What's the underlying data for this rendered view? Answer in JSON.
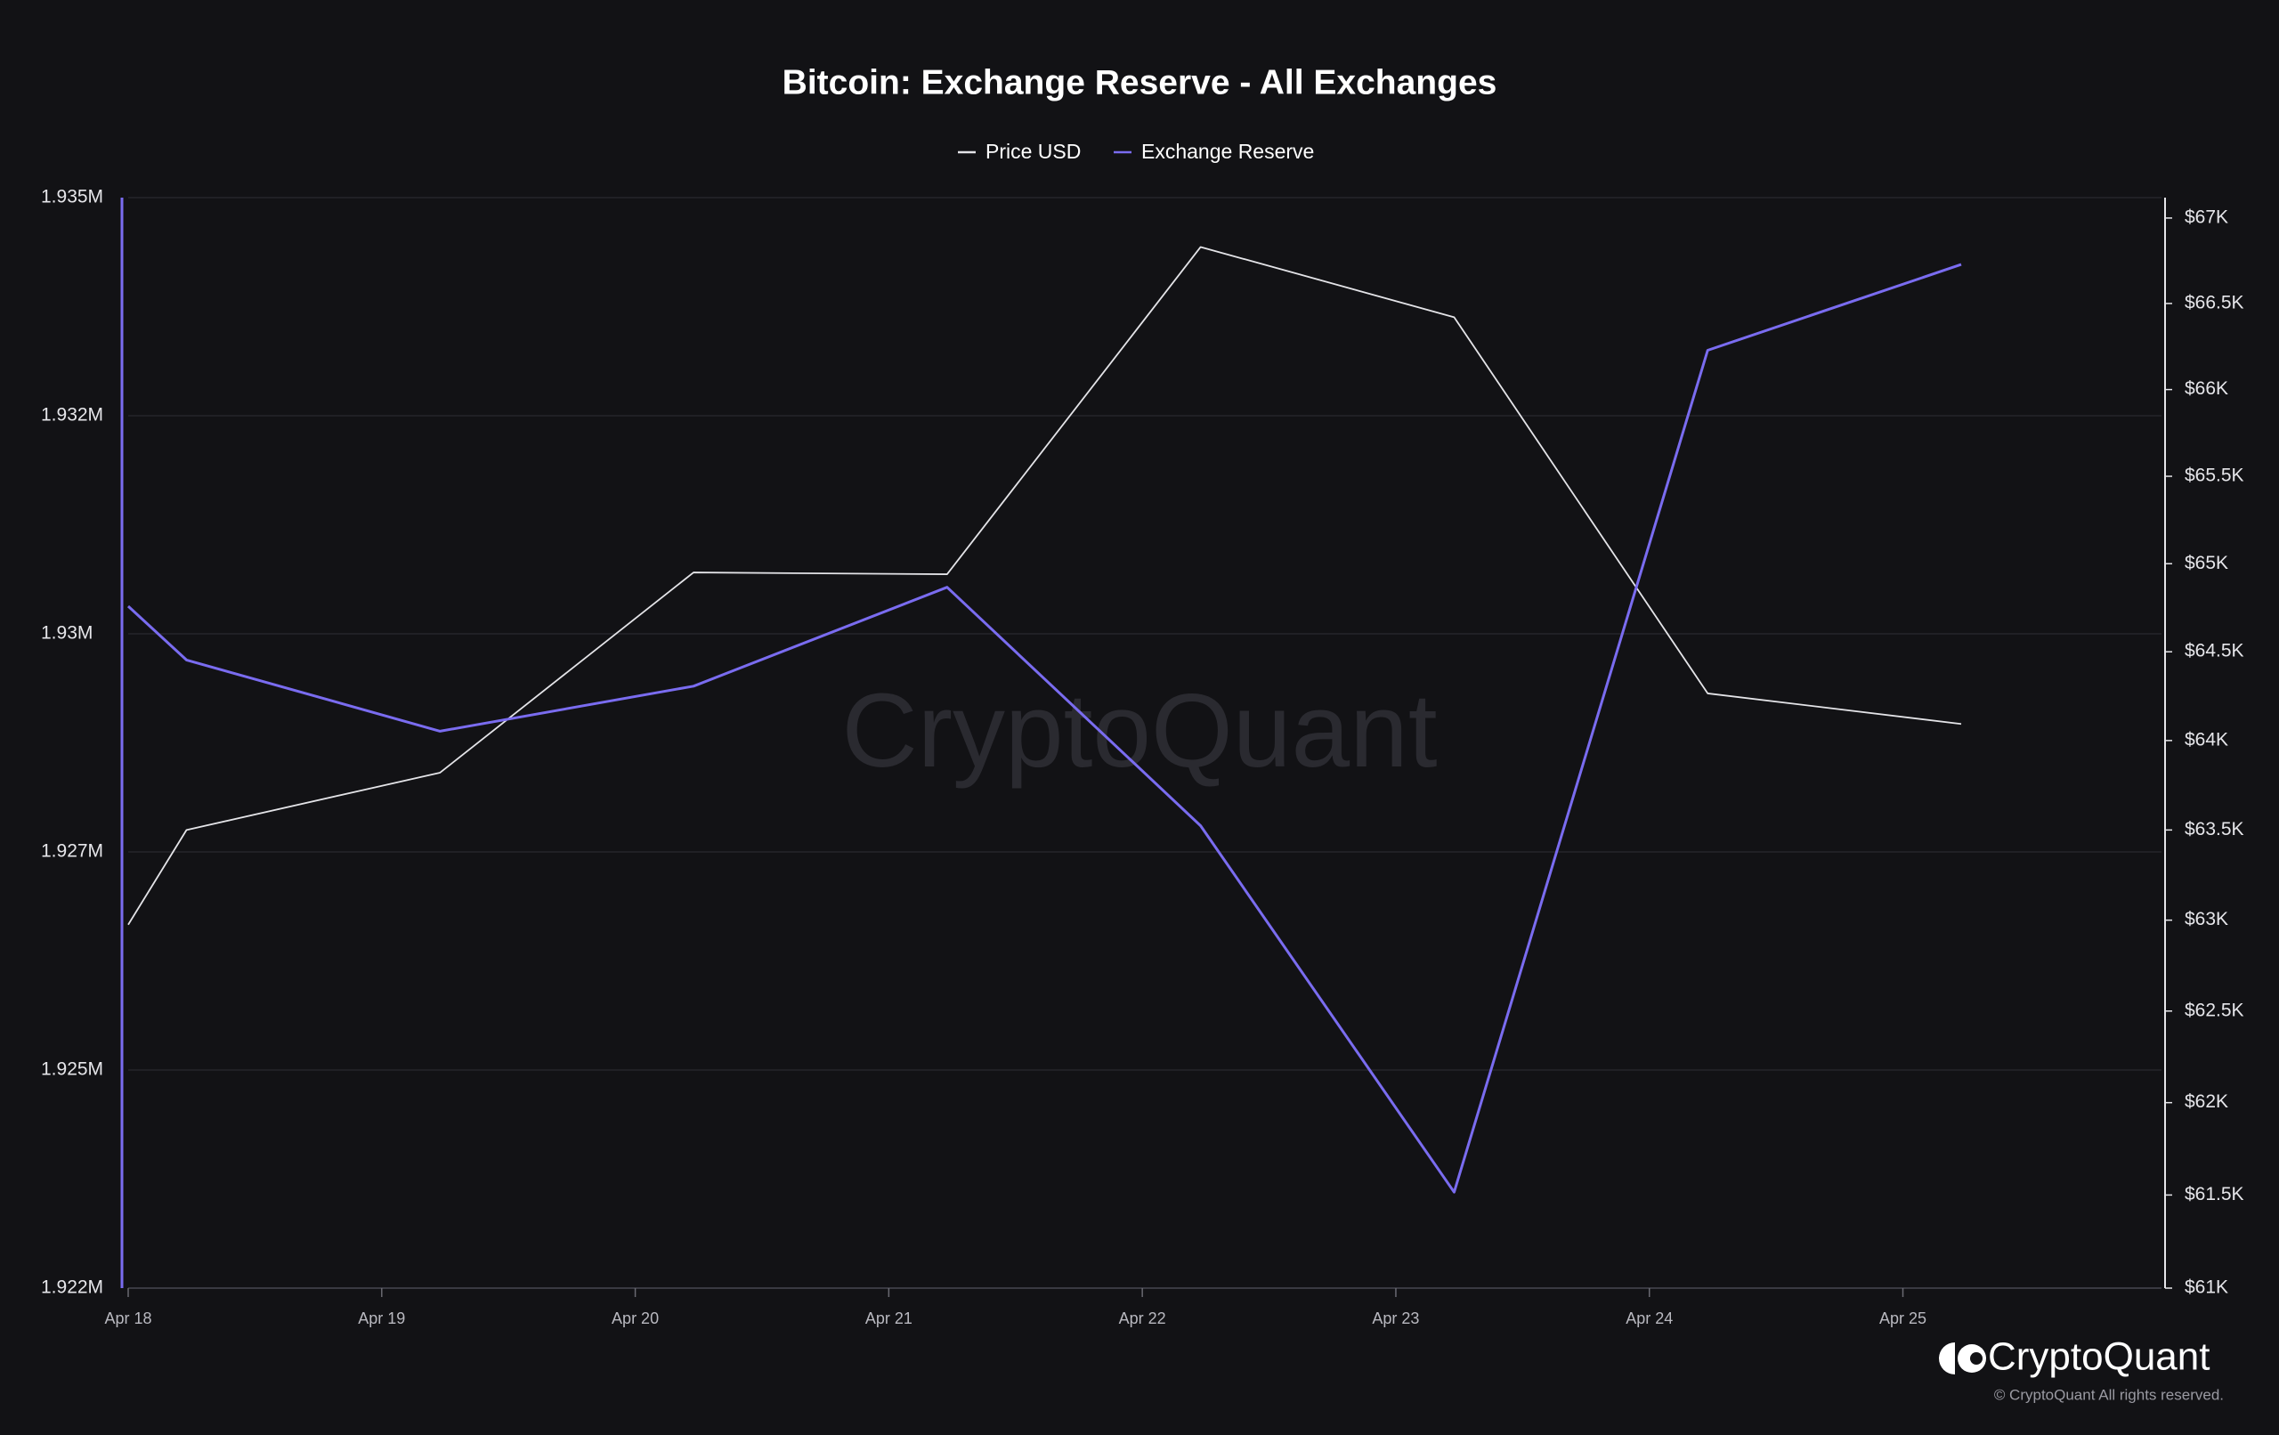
{
  "chart_data": {
    "type": "line",
    "title": "Bitcoin: Exchange Reserve - All Exchanges",
    "watermark": "CryptoQuant",
    "brand": "CryptoQuant",
    "copyright": "© CryptoQuant All rights reserved.",
    "x": [
      0,
      0.23,
      1.23,
      2.23,
      3.23,
      4.23,
      5.23,
      6.23,
      7.23
    ],
    "xlim": [
      0,
      8.02
    ],
    "xticks": [
      {
        "value": 0,
        "label": "Apr 18"
      },
      {
        "value": 1,
        "label": "Apr 19"
      },
      {
        "value": 2,
        "label": "Apr 20"
      },
      {
        "value": 3,
        "label": "Apr 21"
      },
      {
        "value": 4,
        "label": "Apr 22"
      },
      {
        "value": 5,
        "label": "Apr 23"
      },
      {
        "value": 6,
        "label": "Apr 24"
      },
      {
        "value": 7,
        "label": "Apr 25"
      }
    ],
    "ylim": [
      1922000,
      1935000
    ],
    "yticks": [
      {
        "value": 1922000,
        "label": "1.922M"
      },
      {
        "value": 1924600,
        "label": "1.925M"
      },
      {
        "value": 1927200,
        "label": "1.927M"
      },
      {
        "value": 1929800,
        "label": "1.93M"
      },
      {
        "value": 1932400,
        "label": "1.932M"
      },
      {
        "value": 1935000,
        "label": "1.935M"
      }
    ],
    "y2lim": [
      61000,
      67120
    ],
    "y2scale": "log",
    "y2ticks": [
      {
        "value": 61000,
        "label": "$61K"
      },
      {
        "value": 61500,
        "label": "$61.5K"
      },
      {
        "value": 62000,
        "label": "$62K"
      },
      {
        "value": 62500,
        "label": "$62.5K"
      },
      {
        "value": 63000,
        "label": "$63K"
      },
      {
        "value": 63500,
        "label": "$63.5K"
      },
      {
        "value": 64000,
        "label": "$64K"
      },
      {
        "value": 64500,
        "label": "$64.5K"
      },
      {
        "value": 65000,
        "label": "$65K"
      },
      {
        "value": 65500,
        "label": "$65.5K"
      },
      {
        "value": 66000,
        "label": "$66K"
      },
      {
        "value": 66500,
        "label": "$66.5K"
      },
      {
        "value": 67000,
        "label": "$67K"
      }
    ],
    "grid": true,
    "series": [
      {
        "name": "Price USD",
        "color": "#e4e4e8",
        "axis": "y2",
        "values": [
          62975,
          63500,
          63820,
          64950,
          64940,
          66830,
          66420,
          64265,
          64093
        ]
      },
      {
        "name": "Exchange Reserve",
        "color": "#7a6cf0",
        "values": [
          1930129,
          1929488,
          1928639,
          1929176,
          1930355,
          1927512,
          1923144,
          1933180,
          1934203
        ]
      }
    ]
  }
}
